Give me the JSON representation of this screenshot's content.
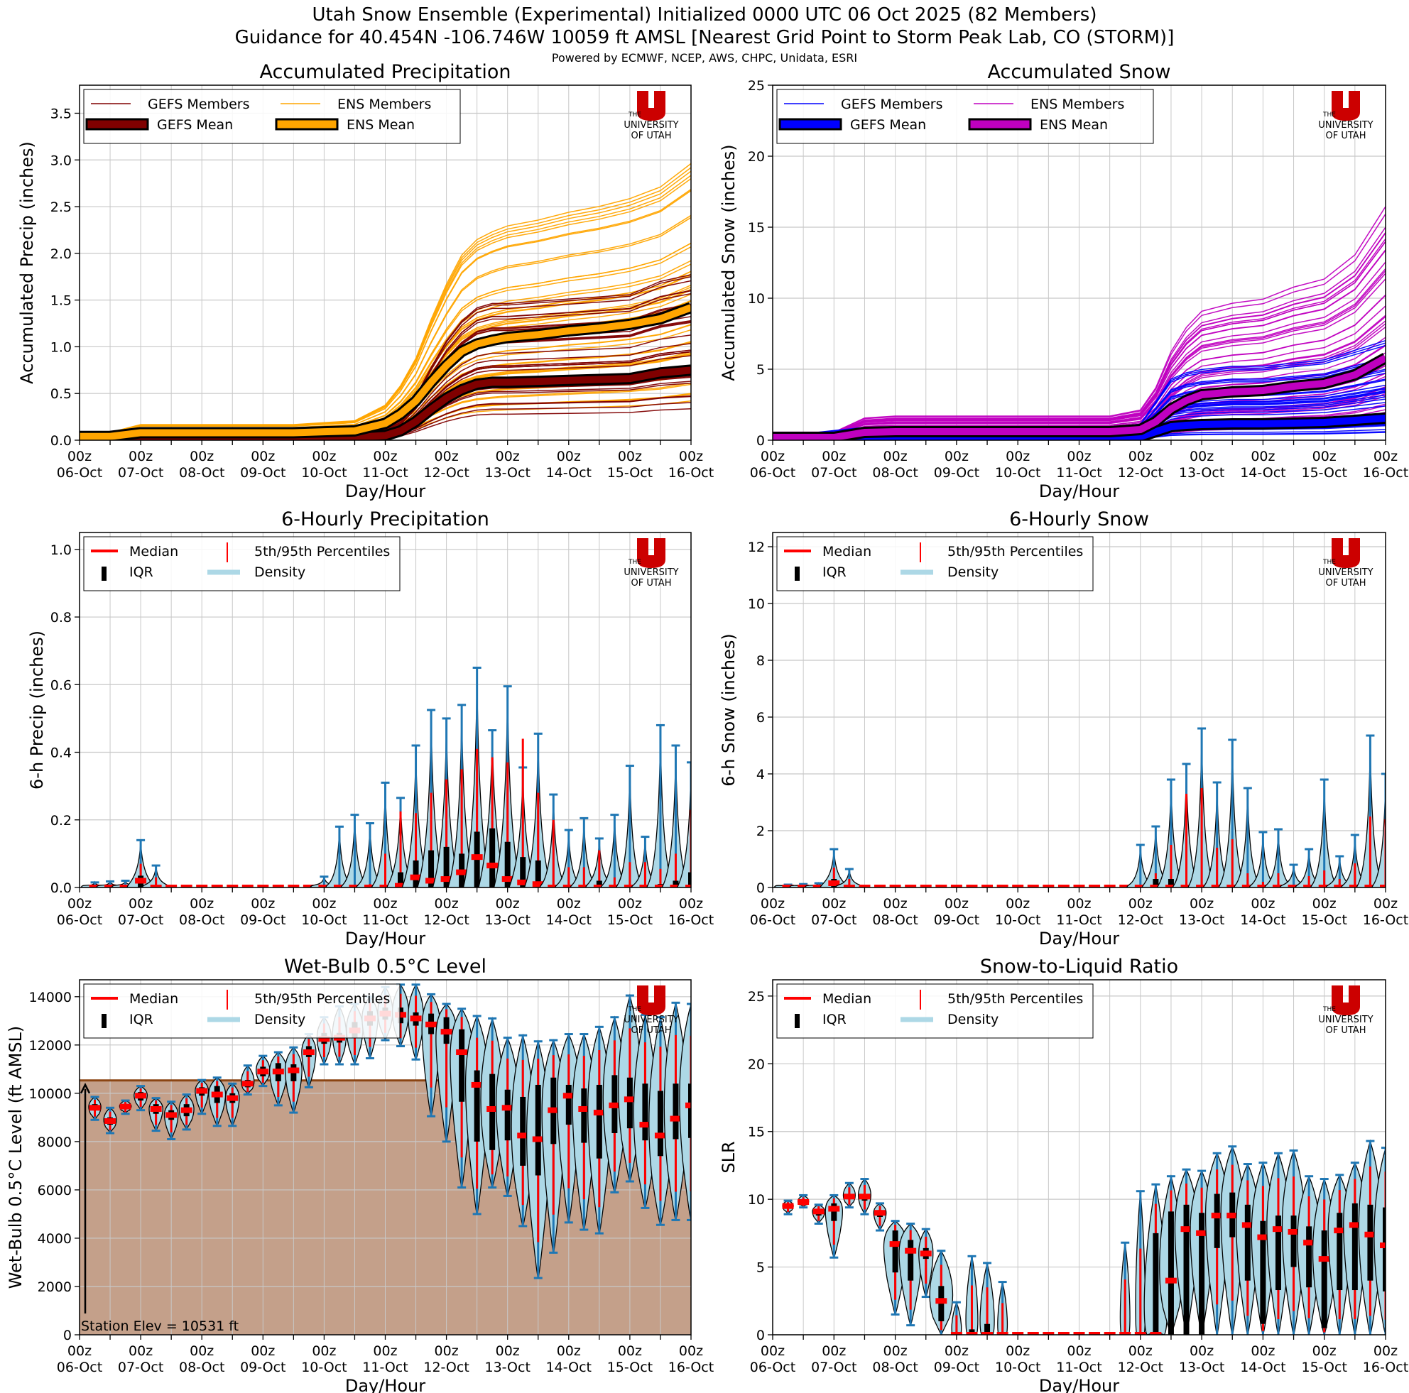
{
  "header": {
    "title_line1": "Utah Snow Ensemble (Experimental) Initialized 0000 UTC 06 Oct 2025 (82 Members)",
    "title_line2": "Guidance for 40.454N -106.746W 10059 ft AMSL [Nearest Grid Point to Storm Peak Lab, CO (STORM)]",
    "credits": "Powered by ECMWF, NCEP, AWS, CHPC, Unidata, ESRI"
  },
  "logo": {
    "the": "THE",
    "university": "UNIVERSITY",
    "of_utah": "OF UTAH",
    "color": "#cc0000"
  },
  "colors": {
    "gefs_precip": "#800000",
    "ens_precip": "#ffa500",
    "gefs_snow": "#0000ff",
    "ens_snow": "#c000c0",
    "median": "#ff0000",
    "iqr": "#000000",
    "density": "#add8e6",
    "whisker": "#1f77b4",
    "station_fill": "#c4a08a",
    "station_line": "#8b4513",
    "grid": "#c8c8c8"
  },
  "x_axis": {
    "label": "Day/Hour",
    "ticks": [
      {
        "hour": "00z",
        "day": "06-Oct"
      },
      {
        "hour": "00z",
        "day": "07-Oct"
      },
      {
        "hour": "00z",
        "day": "08-Oct"
      },
      {
        "hour": "00z",
        "day": "09-Oct"
      },
      {
        "hour": "00z",
        "day": "10-Oct"
      },
      {
        "hour": "00z",
        "day": "11-Oct"
      },
      {
        "hour": "00z",
        "day": "12-Oct"
      },
      {
        "hour": "00z",
        "day": "13-Oct"
      },
      {
        "hour": "00z",
        "day": "14-Oct"
      },
      {
        "hour": "00z",
        "day": "15-Oct"
      },
      {
        "hour": "00z",
        "day": "16-Oct"
      }
    ]
  },
  "chart_data": [
    {
      "id": "acc-precip",
      "type": "line",
      "title": "Accumulated Precipitation",
      "ylabel": "Accumulated Precip (inches)",
      "xlabel": "Day/Hour",
      "ylim": [
        0,
        3.8
      ],
      "yticks": [
        "0.0",
        "0.5",
        "1.0",
        "1.5",
        "2.0",
        "2.5",
        "3.0",
        "3.5"
      ],
      "ytick_values": [
        0,
        0.5,
        1,
        1.5,
        2,
        2.5,
        3,
        3.5
      ],
      "xlim_days": [
        0,
        10
      ],
      "legend": [
        "GEFS Members",
        "ENS Members",
        "GEFS Mean",
        "ENS Mean"
      ],
      "legend_position": "top-left",
      "x_days": [
        0,
        0.5,
        1,
        1.5,
        2,
        2.5,
        3,
        3.5,
        4,
        4.5,
        5,
        5.25,
        5.5,
        5.75,
        6,
        6.25,
        6.5,
        6.75,
        7,
        7.5,
        8,
        8.5,
        9,
        9.5,
        10
      ],
      "series": [
        {
          "name": "GEFS Mean",
          "values": [
            0.03,
            0.03,
            0.03,
            0.03,
            0.03,
            0.03,
            0.03,
            0.03,
            0.03,
            0.03,
            0.05,
            0.1,
            0.2,
            0.33,
            0.45,
            0.54,
            0.6,
            0.62,
            0.62,
            0.63,
            0.64,
            0.65,
            0.66,
            0.72,
            0.75
          ]
        },
        {
          "name": "ENS Mean",
          "values": [
            0.04,
            0.04,
            0.08,
            0.08,
            0.08,
            0.08,
            0.08,
            0.08,
            0.09,
            0.1,
            0.18,
            0.28,
            0.42,
            0.62,
            0.8,
            0.95,
            1.03,
            1.07,
            1.1,
            1.13,
            1.17,
            1.2,
            1.24,
            1.3,
            1.42
          ]
        }
      ],
      "member_envelope": {
        "ens_max_end": 3.0,
        "gefs_max_end": 1.82,
        "ens_min_end": 0.26,
        "gefs_min_end": 0.25
      }
    },
    {
      "id": "acc-snow",
      "type": "line",
      "title": "Accumulated Snow",
      "ylabel": "Accumulated Snow (inches)",
      "xlabel": "Day/Hour",
      "ylim": [
        0,
        25
      ],
      "yticks": [
        "0",
        "5",
        "10",
        "15",
        "20",
        "25"
      ],
      "ytick_values": [
        0,
        5,
        10,
        15,
        20,
        25
      ],
      "xlim_days": [
        0,
        10
      ],
      "legend": [
        "GEFS Members",
        "ENS Members",
        "GEFS Mean",
        "ENS Mean"
      ],
      "legend_position": "top-left",
      "x_days": [
        0,
        0.5,
        1,
        1.5,
        2,
        2.5,
        3,
        3.5,
        4,
        4.5,
        5,
        5.5,
        6,
        6.25,
        6.5,
        6.75,
        7,
        7.5,
        8,
        8.5,
        9,
        9.5,
        10
      ],
      "series": [
        {
          "name": "GEFS Mean",
          "values": [
            0.1,
            0.1,
            0.15,
            0.2,
            0.2,
            0.2,
            0.2,
            0.2,
            0.2,
            0.2,
            0.2,
            0.2,
            0.25,
            0.6,
            0.95,
            1.05,
            1.1,
            1.15,
            1.15,
            1.2,
            1.25,
            1.4,
            1.55
          ]
        },
        {
          "name": "ENS Mean",
          "values": [
            0.2,
            0.2,
            0.2,
            0.55,
            0.6,
            0.6,
            0.6,
            0.6,
            0.6,
            0.6,
            0.6,
            0.6,
            0.75,
            1.3,
            2.2,
            2.8,
            3.2,
            3.4,
            3.5,
            3.8,
            4.0,
            4.6,
            5.8
          ]
        }
      ],
      "member_envelope": {
        "ens_max_end": 16.6,
        "gefs_max_end": 7.5
      }
    },
    {
      "id": "6h-precip",
      "type": "violin",
      "title": "6-Hourly Precipitation",
      "ylabel": "6-h Precip (inches)",
      "xlabel": "Day/Hour",
      "ylim": [
        0,
        1.05
      ],
      "yticks": [
        "0.0",
        "0.2",
        "0.4",
        "0.6",
        "0.8",
        "1.0"
      ],
      "ytick_values": [
        0,
        0.2,
        0.4,
        0.6,
        0.8,
        1.0
      ],
      "legend": [
        "Median",
        "5th/95th Percentiles",
        "IQR",
        "Density"
      ],
      "legend_position": "top-left",
      "valid_hours_start": 6,
      "step_hours": 6,
      "median": [
        0,
        0,
        0,
        0.02,
        0,
        0,
        0,
        0,
        0,
        0,
        0,
        0,
        0,
        0,
        0,
        0,
        0,
        0,
        0,
        0,
        0.005,
        0.03,
        0.02,
        0.025,
        0.045,
        0.09,
        0.065,
        0.025,
        0.015,
        0.01,
        0,
        0,
        0,
        0,
        0,
        0,
        0,
        0,
        0,
        0
      ],
      "q75": [
        0,
        0,
        0,
        0.035,
        0.005,
        0,
        0,
        0,
        0,
        0,
        0,
        0,
        0,
        0,
        0,
        0,
        0,
        0,
        0,
        0,
        0.045,
        0.08,
        0.11,
        0.12,
        0.1,
        0.165,
        0.175,
        0.135,
        0.09,
        0.08,
        0,
        0,
        0,
        0.02,
        0,
        0,
        0,
        0.01,
        0.02,
        0.045
      ],
      "p95": [
        0,
        0,
        0,
        0.07,
        0.03,
        0,
        0,
        0,
        0,
        0,
        0,
        0,
        0,
        0,
        0,
        0,
        0,
        0.005,
        0.01,
        0.1,
        0.225,
        0.22,
        0.28,
        0.32,
        0.35,
        0.41,
        0.385,
        0.37,
        0.44,
        0.28,
        0.2,
        0.06,
        0.06,
        0.11,
        0.03,
        0.075,
        0.075,
        0.055,
        0.1,
        0.23
      ],
      "max": [
        0.015,
        0.018,
        0.02,
        0.14,
        0.065,
        0,
        0,
        0,
        0,
        0,
        0,
        0,
        0,
        0,
        0,
        0.032,
        0.18,
        0.215,
        0.19,
        0.31,
        0.265,
        0.42,
        0.525,
        0.5,
        0.54,
        0.65,
        0.465,
        0.595,
        0.355,
        0.455,
        0.275,
        0.17,
        0.205,
        0.145,
        0.215,
        0.36,
        0.15,
        0.48,
        0.42,
        0.37
      ]
    },
    {
      "id": "6h-snow",
      "type": "violin",
      "title": "6-Hourly Snow",
      "ylabel": "6-h Snow (inches)",
      "xlabel": "Day/Hour",
      "ylim": [
        0,
        12.5
      ],
      "yticks": [
        "0",
        "2",
        "4",
        "6",
        "8",
        "10",
        "12"
      ],
      "ytick_values": [
        0,
        2,
        4,
        6,
        8,
        10,
        12
      ],
      "legend": [
        "Median",
        "5th/95th Percentiles",
        "IQR",
        "Density"
      ],
      "legend_position": "top-left",
      "valid_hours_start": 6,
      "step_hours": 6,
      "median": [
        0,
        0,
        0,
        0.15,
        0,
        0,
        0,
        0,
        0,
        0,
        0,
        0,
        0,
        0,
        0,
        0,
        0,
        0,
        0,
        0,
        0,
        0,
        0,
        0,
        0,
        0,
        0,
        0,
        0,
        0,
        0,
        0,
        0,
        0,
        0,
        0,
        0,
        0,
        0,
        0
      ],
      "q75": [
        0,
        0,
        0,
        0.3,
        0,
        0,
        0,
        0,
        0,
        0,
        0,
        0,
        0,
        0,
        0,
        0,
        0,
        0,
        0,
        0,
        0,
        0,
        0,
        0,
        0.3,
        0.3,
        0,
        0,
        0,
        0,
        0,
        0,
        0,
        0,
        0,
        0,
        0,
        0,
        0,
        0
      ],
      "p95": [
        0,
        0,
        0,
        0.7,
        0.3,
        0,
        0,
        0,
        0,
        0,
        0,
        0,
        0,
        0,
        0,
        0,
        0,
        0,
        0,
        0,
        0,
        0,
        0,
        0.05,
        0.5,
        1.5,
        3.3,
        3.5,
        1.4,
        1.7,
        0.5,
        0.2,
        0.5,
        0.1,
        0.4,
        0.6,
        0.3,
        0.85,
        2.5,
        2.4
      ],
      "max": [
        0.1,
        0.12,
        0.15,
        1.35,
        0.65,
        0,
        0,
        0,
        0,
        0,
        0,
        0,
        0,
        0,
        0,
        0,
        0,
        0,
        0,
        0,
        0,
        0,
        0,
        1.5,
        2.15,
        3.8,
        4.35,
        5.6,
        3.7,
        5.2,
        3.5,
        1.95,
        2.05,
        0.8,
        1.35,
        3.8,
        1.1,
        1.85,
        5.35,
        4.0
      ]
    },
    {
      "id": "wetbulb",
      "type": "violin",
      "title": "Wet-Bulb 0.5°C Level",
      "ylabel": "Wet-Bulb 0.5°C Level (ft AMSL)",
      "xlabel": "Day/Hour",
      "ylim": [
        0,
        14700
      ],
      "yticks": [
        "0",
        "2000",
        "4000",
        "6000",
        "8000",
        "10000",
        "12000",
        "14000"
      ],
      "ytick_values": [
        0,
        2000,
        4000,
        6000,
        8000,
        10000,
        12000,
        14000
      ],
      "legend": [
        "Median",
        "5th/95th Percentiles",
        "IQR",
        "Density"
      ],
      "legend_position": "top-left",
      "station_elev_ft": 10531,
      "station_label": "Station Elev = 10531 ft",
      "valid_hours_start": 6,
      "step_hours": 6,
      "median": [
        9400,
        8850,
        9450,
        9900,
        9350,
        9100,
        9300,
        10100,
        9950,
        9800,
        10400,
        10900,
        10900,
        10950,
        11700,
        12250,
        12300,
        12600,
        13100,
        13300,
        13250,
        13100,
        12850,
        12550,
        11700,
        10350,
        9350,
        9400,
        8250,
        8100,
        9300,
        9900,
        9350,
        9200,
        9500,
        9750,
        8700,
        8250,
        8950,
        9500
      ],
      "q25": [
        9300,
        8700,
        9350,
        9700,
        9150,
        8900,
        9050,
        9900,
        9600,
        9600,
        10250,
        10700,
        10500,
        10500,
        11500,
        12050,
        12100,
        12300,
        12800,
        13050,
        12900,
        12800,
        12450,
        12050,
        9650,
        8000,
        7650,
        8050,
        7000,
        6600,
        7900,
        8700,
        7950,
        7300,
        8350,
        8550,
        8050,
        7400,
        8100,
        8150
      ],
      "q75": [
        9550,
        9000,
        9550,
        10050,
        9550,
        9300,
        9550,
        10250,
        10300,
        10000,
        10550,
        11100,
        11250,
        11200,
        11950,
        12500,
        12500,
        12950,
        13400,
        13550,
        13550,
        13350,
        13300,
        13150,
        12650,
        10950,
        10800,
        10150,
        9850,
        10350,
        10650,
        10350,
        10200,
        10350,
        10750,
        10650,
        10400,
        10100,
        10400,
        10400
      ],
      "min": [
        8900,
        8350,
        9150,
        9300,
        8450,
        8100,
        8500,
        9150,
        8650,
        8650,
        9950,
        10300,
        9500,
        9200,
        10250,
        11200,
        11200,
        11200,
        11450,
        12200,
        11950,
        11400,
        9050,
        8000,
        6100,
        5000,
        6100,
        5750,
        4500,
        2350,
        3400,
        4650,
        4350,
        4200,
        5900,
        6350,
        5250,
        4550,
        4750,
        4750
      ],
      "max": [
        9850,
        9400,
        9700,
        10300,
        9800,
        9650,
        9950,
        10550,
        10650,
        10400,
        11150,
        11550,
        11700,
        11900,
        12450,
        13150,
        13600,
        13700,
        14000,
        14400,
        14500,
        14500,
        14100,
        13700,
        13500,
        13200,
        13100,
        12300,
        12400,
        12150,
        12200,
        12450,
        12450,
        12750,
        13150,
        14050,
        13250,
        13150,
        13750,
        13700
      ]
    },
    {
      "id": "slr",
      "type": "violin",
      "title": "Snow-to-Liquid Ratio",
      "ylabel": "SLR",
      "xlabel": "Day/Hour",
      "ylim": [
        0,
        26.2
      ],
      "yticks": [
        "0",
        "5",
        "10",
        "15",
        "20",
        "25"
      ],
      "ytick_values": [
        0,
        5,
        10,
        15,
        20,
        25
      ],
      "legend": [
        "Median",
        "5th/95th Percentiles",
        "IQR",
        "Density"
      ],
      "legend_position": "top-left",
      "valid_hours_start": 6,
      "step_hours": 6,
      "median": [
        9.5,
        9.8,
        9.1,
        9.3,
        10.2,
        10.2,
        9.0,
        6.7,
        6.2,
        6.0,
        2.5,
        0,
        0,
        0,
        0,
        0,
        0,
        0,
        0,
        0,
        0,
        0,
        0,
        0,
        0,
        4.0,
        7.8,
        7.5,
        8.8,
        8.8,
        8.1,
        7.2,
        7.8,
        7.6,
        6.8,
        5.6,
        7.7,
        8.1,
        7.4,
        6.6
      ],
      "q25": [
        9.4,
        9.7,
        8.8,
        8.4,
        10.0,
        9.9,
        8.7,
        4.6,
        4.0,
        5.6,
        1.0,
        0,
        0,
        0,
        0,
        0,
        0,
        0,
        0,
        0,
        0,
        0,
        0,
        0,
        0,
        0,
        0,
        0,
        6.4,
        7.2,
        4.0,
        0.8,
        3.3,
        5.0,
        3.5,
        0.5,
        3.3,
        3.3,
        4.0,
        3.2
      ],
      "q75": [
        9.6,
        9.9,
        9.3,
        9.7,
        10.4,
        10.4,
        9.2,
        7.7,
        7.0,
        6.4,
        3.6,
        0,
        0.4,
        0.8,
        0,
        0,
        0,
        0,
        0,
        0,
        0,
        0,
        0,
        0,
        7.5,
        9.1,
        9.6,
        9.0,
        10.4,
        10.5,
        9.6,
        8.4,
        8.8,
        8.8,
        8.0,
        7.7,
        9.0,
        9.7,
        9.6,
        9.4
      ],
      "min": [
        8.9,
        9.4,
        8.2,
        5.7,
        9.4,
        8.9,
        7.7,
        1.5,
        0.7,
        2.8,
        0,
        0,
        0,
        0,
        0,
        0,
        0,
        0,
        0,
        0,
        0,
        0,
        0,
        0,
        0,
        0,
        0,
        0,
        0,
        0,
        0,
        0,
        0,
        0,
        0,
        0,
        0,
        0,
        0,
        0
      ],
      "max": [
        9.9,
        10.3,
        9.6,
        10.3,
        11.2,
        11.5,
        9.7,
        8.4,
        8.2,
        7.8,
        6.2,
        2.4,
        5.8,
        5.3,
        3.9,
        0,
        0,
        0,
        0,
        0,
        0,
        0,
        6.8,
        10.6,
        11.1,
        11.7,
        12.2,
        12.1,
        13.4,
        13.9,
        12.6,
        12.7,
        13.4,
        13.6,
        11.7,
        11.5,
        11.8,
        12.7,
        14.3,
        13.8
      ]
    }
  ]
}
